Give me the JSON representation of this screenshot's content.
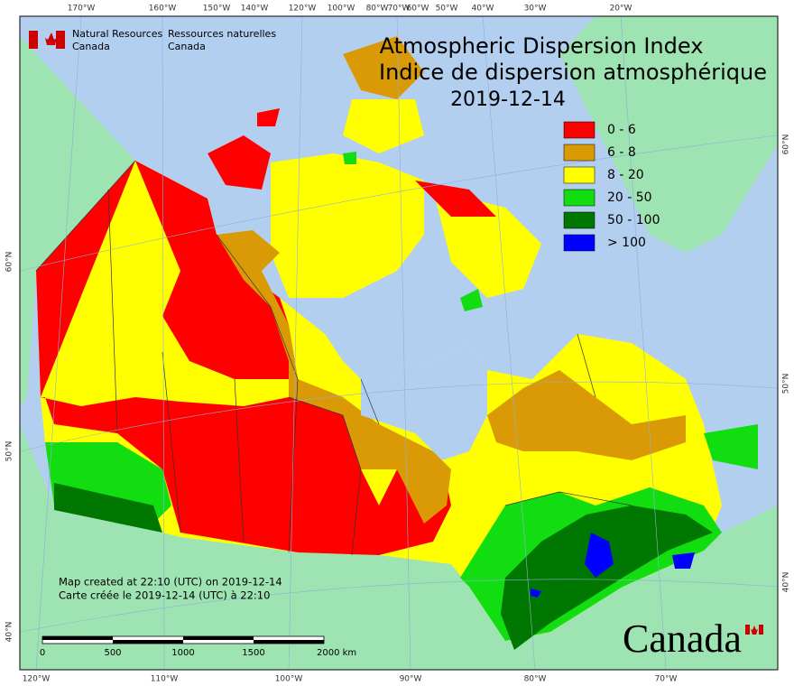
{
  "header": {
    "org_en": [
      "Natural Resources",
      "Canada"
    ],
    "org_fr": [
      "Ressources naturelles",
      "Canada"
    ],
    "title": [
      "Atmospheric Dispersion Index",
      "Indice de dispersion atmosphérique",
      "2019-12-14"
    ]
  },
  "legend": [
    {
      "label": "0 - 6",
      "color": "#ff0000"
    },
    {
      "label": "6 - 8",
      "color": "#d99a06"
    },
    {
      "label": "8 - 20",
      "color": "#ffff00"
    },
    {
      "label": "20 - 50",
      "color": "#11dd11"
    },
    {
      "label": "50 - 100",
      "color": "#007700"
    },
    {
      "label": "> 100",
      "color": "#0000ff"
    }
  ],
  "graticule": {
    "top": [
      "170°W",
      "160°W",
      "150°W",
      "140°W",
      "120°W",
      "100°W",
      "80°W",
      "70°W",
      "60°W",
      "50°W",
      "40°W",
      "30°W",
      "20°W"
    ],
    "bottom": [
      "120°W",
      "110°W",
      "100°W",
      "90°W",
      "80°W",
      "70°W"
    ],
    "left": [
      "60°N",
      "50°N",
      "40°N"
    ],
    "right": [
      "60°N",
      "50°N",
      "40°N"
    ]
  },
  "scale_bar": [
    "0",
    "500",
    "1000",
    "1500",
    "2000 km"
  ],
  "footer": [
    "Map created at 22:10 (UTC) on 2019-12-14",
    "Carte créée le 2019-12-14 (UTC) à 22:10"
  ],
  "wordmark": "Canada"
}
